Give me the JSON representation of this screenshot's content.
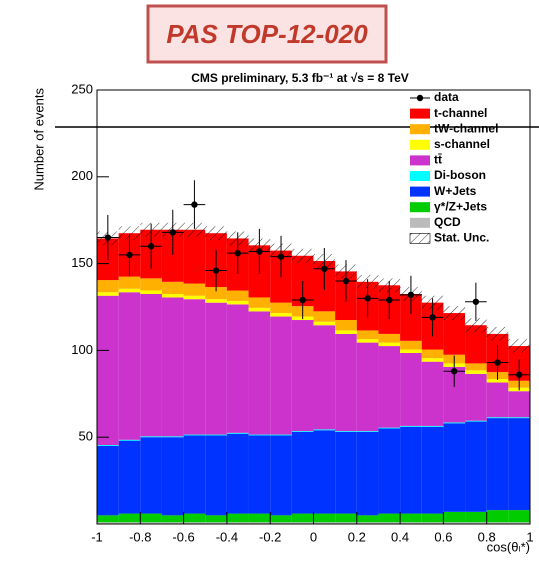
{
  "banner": "PAS TOP-12-020",
  "chart_data": {
    "type": "stacked-histogram",
    "title": "CMS preliminary, 5.3 fb⁻¹ at √s = 8 TeV",
    "y_label": "Number of events",
    "x_label": "cos(θₗ*)",
    "bins": [
      -1,
      -0.9,
      -0.8,
      -0.7,
      -0.6,
      -0.5,
      -0.4,
      -0.3,
      -0.2,
      -0.1,
      0,
      0.1,
      0.2,
      0.3,
      0.4,
      0.5,
      0.6,
      0.7,
      0.8,
      0.9,
      1
    ],
    "xlim": [
      -1,
      1
    ],
    "xticks": [
      -1,
      -0.8,
      -0.6,
      -0.4,
      -0.2,
      0,
      0.2,
      0.4,
      0.6,
      0.8,
      1
    ],
    "ylim": [
      0,
      250
    ],
    "yticks": [
      50,
      100,
      150,
      200,
      250
    ],
    "grid": false,
    "legend_position": "top-right",
    "data": {
      "name": "data",
      "color": "#000000",
      "values": [
        165,
        155,
        160,
        168,
        184,
        146,
        156,
        157,
        154,
        129,
        147,
        140,
        130,
        129,
        132,
        119,
        88,
        128,
        93,
        86
      ],
      "errors": [
        13,
        12,
        13,
        13,
        14,
        12,
        12,
        13,
        12,
        11,
        12,
        12,
        11,
        11,
        11,
        11,
        9,
        11,
        10,
        9
      ]
    },
    "series": [
      {
        "name": "t-channel",
        "color": "#ff0000",
        "values": [
          24,
          25,
          28,
          30,
          31,
          31,
          30,
          30,
          30,
          29,
          29,
          28,
          28,
          28,
          27,
          27,
          24,
          22,
          22,
          20
        ]
      },
      {
        "name": "tW-channel",
        "color": "#ffb000",
        "values": [
          7,
          7,
          7,
          7,
          7,
          7,
          6,
          6,
          6,
          6,
          6,
          6,
          5,
          5,
          5,
          5,
          5,
          4,
          4,
          4
        ]
      },
      {
        "name": "s-channel",
        "color": "#ffff00",
        "values": [
          2,
          2,
          2,
          2,
          2,
          2,
          2,
          2,
          2,
          2,
          2,
          2,
          2,
          2,
          2,
          2,
          2,
          2,
          2,
          2
        ]
      },
      {
        "name": "tt̄",
        "color": "#cc33cc",
        "values": [
          86,
          85,
          82,
          80,
          78,
          76,
          74,
          71,
          68,
          64,
          60,
          56,
          51,
          47,
          42,
          37,
          32,
          27,
          20,
          15
        ]
      },
      {
        "name": "Di-boson",
        "color": "#00ffff",
        "values": [
          0.5,
          0.5,
          0.5,
          0.5,
          0.5,
          0.5,
          0.5,
          0.5,
          0.5,
          0.5,
          0.5,
          0.5,
          0.5,
          0.5,
          0.5,
          0.5,
          0.5,
          0.5,
          0.5,
          0.5
        ]
      },
      {
        "name": "W+Jets",
        "color": "#0033ff",
        "values": [
          40,
          42,
          44,
          45,
          45,
          46,
          46,
          45,
          46,
          47,
          48,
          47,
          48,
          49,
          50,
          50,
          51,
          52,
          53,
          53
        ]
      },
      {
        "name": "γ*/Z+Jets",
        "color": "#00cc00",
        "values": [
          4,
          5,
          5,
          4,
          5,
          4,
          5,
          5,
          4,
          5,
          5,
          5,
          4,
          5,
          5,
          5,
          6,
          6,
          7,
          7
        ]
      },
      {
        "name": "QCD",
        "color": "#bbbbbb",
        "values": [
          1,
          1,
          1,
          1,
          1,
          1,
          1,
          1,
          1,
          1,
          1,
          1,
          1,
          1,
          1,
          1,
          1,
          1,
          1,
          1
        ]
      }
    ],
    "uncertainty": {
      "name": "Stat. Unc.",
      "values": [
        4,
        4,
        4,
        4,
        4,
        4,
        4,
        4,
        4,
        4,
        4,
        4,
        4,
        4,
        4,
        4,
        4,
        4,
        4,
        4
      ]
    }
  }
}
